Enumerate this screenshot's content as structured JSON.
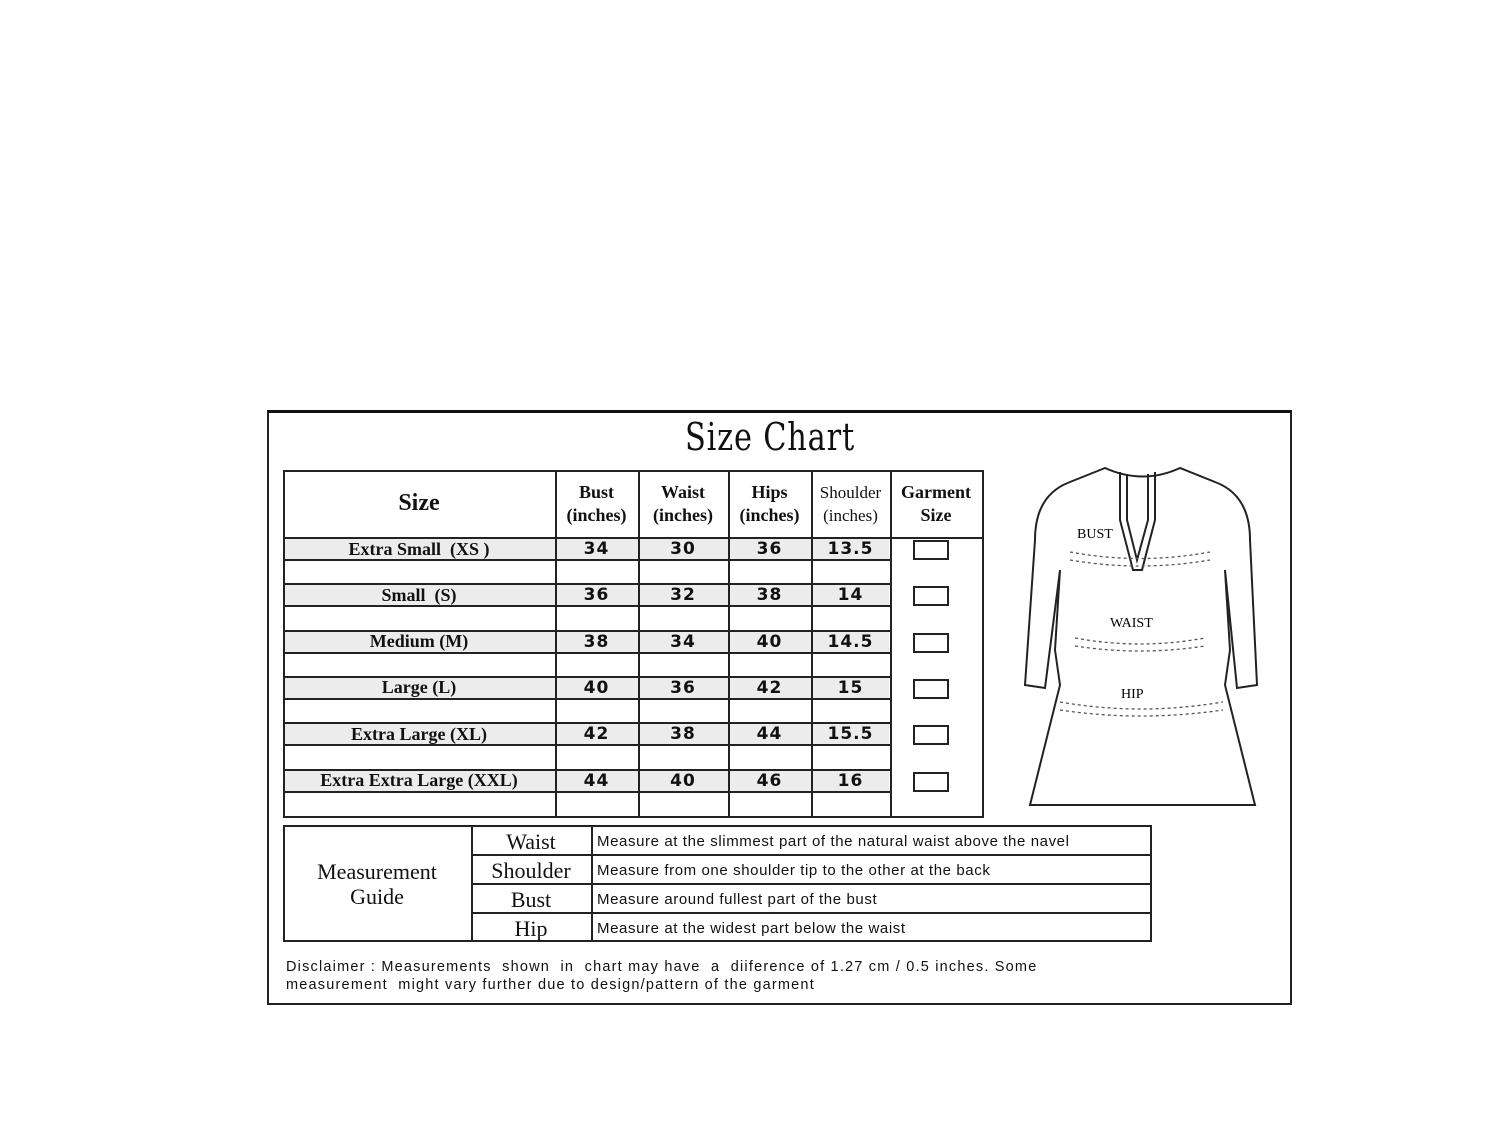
{
  "title": "Size Chart",
  "size_table": {
    "headers": {
      "size": "Size",
      "bust": [
        "Bust",
        "(inches)"
      ],
      "waist": [
        "Waist",
        "(inches)"
      ],
      "hips": [
        "Hips",
        "(inches)"
      ],
      "shoulder": [
        "Shoulder",
        "(inches)"
      ],
      "garment": [
        "Garment",
        "Size"
      ]
    },
    "rows": [
      {
        "size": "Extra Small  (XS )",
        "bust": "34",
        "waist": "30",
        "hips": "36",
        "shoulder": "13.5",
        "garment_checked": false
      },
      {
        "size": "Small  (S)",
        "bust": "36",
        "waist": "32",
        "hips": "38",
        "shoulder": "14",
        "garment_checked": false
      },
      {
        "size": "Medium (M)",
        "bust": "38",
        "waist": "34",
        "hips": "40",
        "shoulder": "14.5",
        "garment_checked": false
      },
      {
        "size": "Large (L)",
        "bust": "40",
        "waist": "36",
        "hips": "42",
        "shoulder": "15",
        "garment_checked": false
      },
      {
        "size": "Extra Large (XL)",
        "bust": "42",
        "waist": "38",
        "hips": "44",
        "shoulder": "15.5",
        "garment_checked": false
      },
      {
        "size": "Extra Extra Large (XXL)",
        "bust": "44",
        "waist": "40",
        "hips": "46",
        "shoulder": "16",
        "garment_checked": false
      }
    ]
  },
  "diagram": {
    "labels": {
      "bust": "BUST",
      "waist": "WAIST",
      "hip": "HIP"
    }
  },
  "guide": {
    "title": [
      "Measurement",
      "Guide"
    ],
    "items": [
      {
        "name": "Waist",
        "text": "Measure at the slimmest part of the natural waist above the navel"
      },
      {
        "name": "Shoulder",
        "text": "Measure from one shoulder tip to the other at the back"
      },
      {
        "name": "Bust",
        "text": "Measure around fullest part of the bust"
      },
      {
        "name": "Hip",
        "text": "Measure at the widest part below the waist"
      }
    ]
  },
  "disclaimer": [
    "Disclaimer : Measurements  shown  in  chart may have  a  diiference of 1.27 cm / 0.5 inches. Some",
    "measurement  might vary further due to design/pattern of the garment"
  ]
}
